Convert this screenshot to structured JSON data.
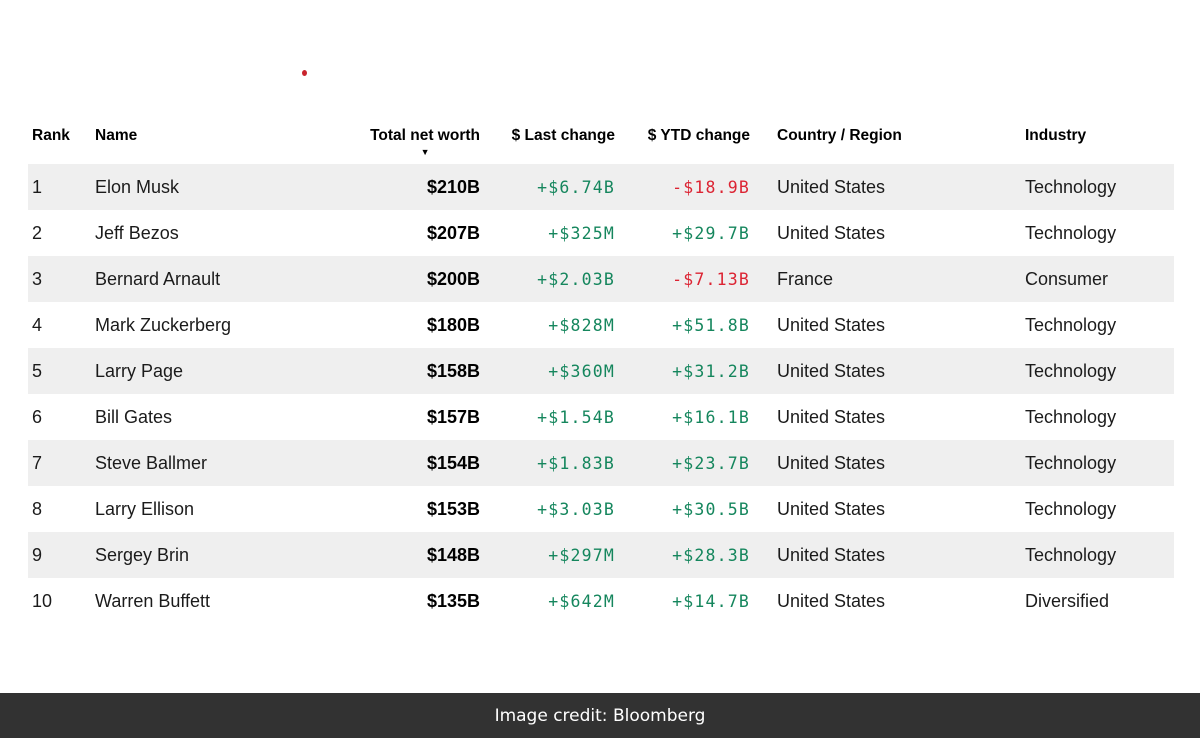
{
  "ui": {
    "headers": {
      "rank": "Rank",
      "name": "Name",
      "net_worth": "Total net worth",
      "last_change": "$ Last change",
      "ytd_change": "$ YTD change",
      "country": "Country / Region",
      "industry": "Industry"
    },
    "sort_icon": "▼",
    "credit_text": "Image credit: Bloomberg",
    "colors": {
      "positive": "#15865d",
      "negative": "#dc2433",
      "row_alt": "#efefef",
      "credit_bg": "#323232",
      "credit_fg": "#ffffff",
      "marker_red": "#c9242d"
    }
  },
  "chart_data": {
    "type": "table",
    "columns": [
      "Rank",
      "Name",
      "Total net worth",
      "$ Last change",
      "$ YTD change",
      "Country / Region",
      "Industry"
    ],
    "sorted_by": "Total net worth",
    "sort_direction": "descending",
    "rows": [
      [
        "1",
        "Elon Musk",
        "$210B",
        "+$6.74B",
        "-$18.9B",
        "United States",
        "Technology"
      ],
      [
        "2",
        "Jeff Bezos",
        "$207B",
        "+$325M",
        "+$29.7B",
        "United States",
        "Technology"
      ],
      [
        "3",
        "Bernard Arnault",
        "$200B",
        "+$2.03B",
        "-$7.13B",
        "France",
        "Consumer"
      ],
      [
        "4",
        "Mark Zuckerberg",
        "$180B",
        "+$828M",
        "+$51.8B",
        "United States",
        "Technology"
      ],
      [
        "5",
        "Larry Page",
        "$158B",
        "+$360M",
        "+$31.2B",
        "United States",
        "Technology"
      ],
      [
        "6",
        "Bill Gates",
        "$157B",
        "+$1.54B",
        "+$16.1B",
        "United States",
        "Technology"
      ],
      [
        "7",
        "Steve Ballmer",
        "$154B",
        "+$1.83B",
        "+$23.7B",
        "United States",
        "Technology"
      ],
      [
        "8",
        "Larry Ellison",
        "$153B",
        "+$3.03B",
        "+$30.5B",
        "United States",
        "Technology"
      ],
      [
        "9",
        "Sergey Brin",
        "$148B",
        "+$297M",
        "+$28.3B",
        "United States",
        "Technology"
      ],
      [
        "10",
        "Warren Buffett",
        "$135B",
        "+$642M",
        "+$14.7B",
        "United States",
        "Diversified"
      ]
    ]
  }
}
